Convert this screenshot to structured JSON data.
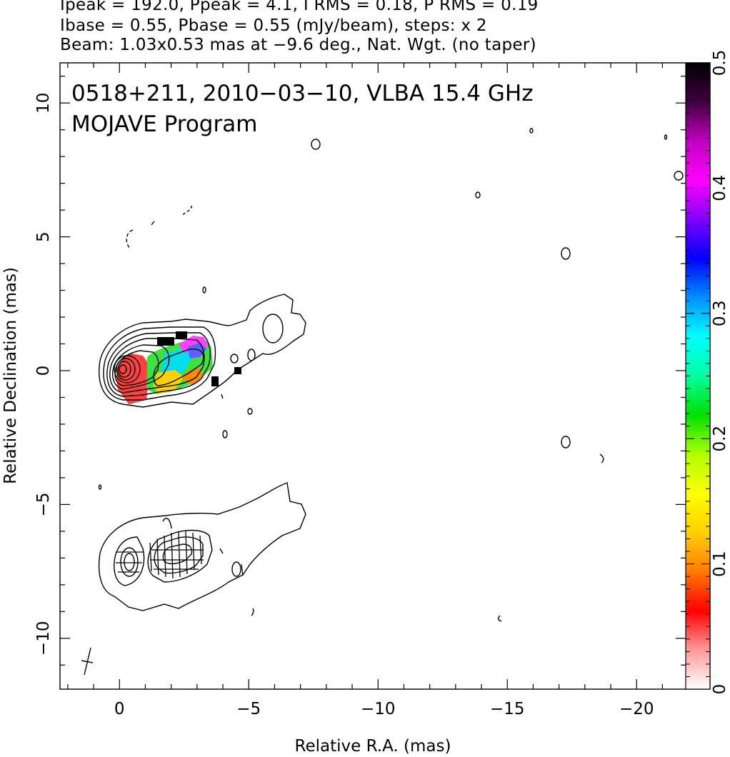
{
  "header": {
    "line1": "Ipeak = 192.0, Ppeak = 4.1, I RMS = 0.18, P RMS = 0.19",
    "line2": "Ibase = 0.55, Pbase = 0.55 (mJy/beam), steps: x 2",
    "line3": "Beam: 1.03x0.53 mas at −9.6 deg., Nat. Wgt. (no taper)"
  },
  "plot_text": {
    "title": "0518+211, 2010−03−10, VLBA 15.4 GHz",
    "subtitle": "MOJAVE Program"
  },
  "colors": {
    "contour": "#000000",
    "colorbar_stops": [
      "#ffffff",
      "#ff9a9a",
      "#ff0000",
      "#ff7a00",
      "#ffd000",
      "#ffff00",
      "#b0ff00",
      "#00e000",
      "#00ffa0",
      "#00ffff",
      "#0090ff",
      "#0000ff",
      "#8000ff",
      "#ff00ff",
      "#c000c0",
      "#400040",
      "#000000"
    ]
  },
  "chart_data": {
    "type": "heatmap",
    "xlabel": "Relative R.A. (mas)",
    "ylabel": "Relative Declination (mas)",
    "xlim": [
      2.3,
      -21.9
    ],
    "ylim": [
      -11.9,
      11.5
    ],
    "x_ticks": [
      0,
      -5,
      -10,
      -15,
      -20
    ],
    "x_tick_labels": [
      "0",
      "−5",
      "−10",
      "−15",
      "−20"
    ],
    "y_ticks": [
      10,
      5,
      0,
      -5,
      -10
    ],
    "y_tick_labels": [
      "10",
      "5",
      "0",
      "−5",
      "−10"
    ],
    "colorbar": {
      "range": [
        0,
        0.5
      ],
      "ticks": [
        0,
        0.1,
        0.2,
        0.3,
        0.4,
        0.5
      ],
      "tick_labels": [
        "0",
        "0.1",
        "0.2",
        "0.3",
        "0.4",
        "0.5"
      ]
    },
    "core_position": [
      0,
      0
    ],
    "jet_position_angle_note": "jet extends to negative R.A., slightly positive Dec",
    "lower_panel_offset_dec": -7.2
  }
}
